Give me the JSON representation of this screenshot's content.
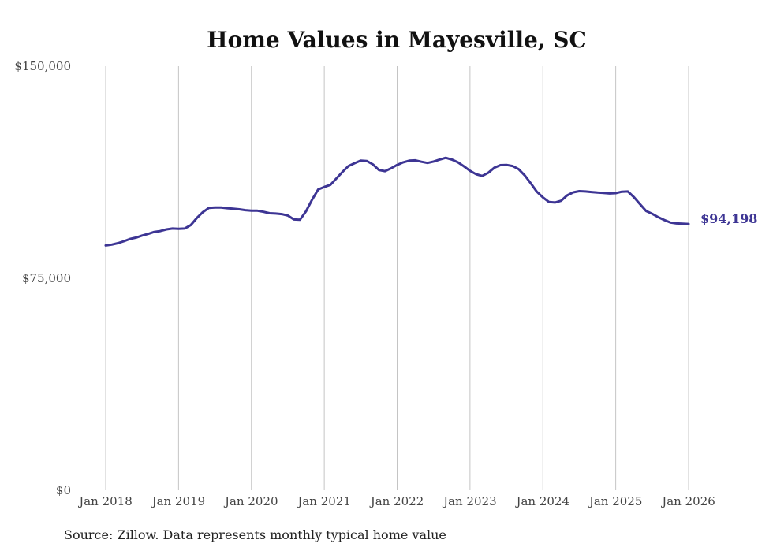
{
  "chart_data": {
    "type": "line",
    "title": "Home Values in Mayesville, SC",
    "xlabel": "",
    "ylabel": "",
    "ylim": [
      0,
      150000
    ],
    "y_ticks": [
      {
        "value": 0,
        "label": "$0"
      },
      {
        "value": 75000,
        "label": "$75,000"
      },
      {
        "value": 150000,
        "label": "$150,000"
      }
    ],
    "x_ticks": [
      {
        "value": "2018-01",
        "label": "Jan 2018"
      },
      {
        "value": "2019-01",
        "label": "Jan 2019"
      },
      {
        "value": "2020-01",
        "label": "Jan 2020"
      },
      {
        "value": "2021-01",
        "label": "Jan 2021"
      },
      {
        "value": "2022-01",
        "label": "Jan 2022"
      },
      {
        "value": "2023-01",
        "label": "Jan 2023"
      },
      {
        "value": "2024-01",
        "label": "Jan 2024"
      },
      {
        "value": "2025-01",
        "label": "Jan 2025"
      },
      {
        "value": "2026-01",
        "label": "Jan 2026"
      }
    ],
    "grid": "vertical",
    "line_color": "#3d3594",
    "end_label": "$94,198",
    "series": [
      {
        "x": [
          "2018-01",
          "2018-02",
          "2018-03",
          "2018-04",
          "2018-05",
          "2018-06",
          "2018-07",
          "2018-08",
          "2018-09",
          "2018-10",
          "2018-11",
          "2018-12",
          "2019-01",
          "2019-02",
          "2019-03",
          "2019-04",
          "2019-05",
          "2019-06",
          "2019-07",
          "2019-08",
          "2019-09",
          "2019-10",
          "2019-11",
          "2019-12",
          "2020-01",
          "2020-02",
          "2020-03",
          "2020-04",
          "2020-05",
          "2020-06",
          "2020-07",
          "2020-08",
          "2020-09",
          "2020-10",
          "2020-11",
          "2020-12",
          "2021-01",
          "2021-02",
          "2021-03",
          "2021-04",
          "2021-05",
          "2021-06",
          "2021-07",
          "2021-08",
          "2021-09",
          "2021-10",
          "2021-11",
          "2021-12",
          "2022-01",
          "2022-02",
          "2022-03",
          "2022-04",
          "2022-05",
          "2022-06",
          "2022-07",
          "2022-08",
          "2022-09",
          "2022-10",
          "2022-11",
          "2022-12",
          "2023-01",
          "2023-02",
          "2023-03",
          "2023-04",
          "2023-05",
          "2023-06",
          "2023-07",
          "2023-08",
          "2023-09",
          "2023-10",
          "2023-11",
          "2023-12",
          "2024-01",
          "2024-02",
          "2024-03",
          "2024-04",
          "2024-05",
          "2024-06",
          "2024-07",
          "2024-08",
          "2024-09",
          "2024-10",
          "2024-11",
          "2024-12",
          "2025-01",
          "2025-02",
          "2025-03",
          "2025-04",
          "2025-05",
          "2025-06",
          "2025-07",
          "2025-08",
          "2025-09",
          "2025-10",
          "2025-11",
          "2025-12",
          "2026-01"
        ],
        "values": [
          86600,
          86900,
          87400,
          88100,
          88900,
          89400,
          90100,
          90700,
          91400,
          91700,
          92300,
          92600,
          92500,
          92600,
          93800,
          96300,
          98400,
          99900,
          100000,
          100000,
          99800,
          99600,
          99400,
          99100,
          98900,
          98900,
          98500,
          98000,
          97900,
          97700,
          97200,
          95800,
          95700,
          98700,
          102800,
          106400,
          107300,
          108000,
          110300,
          112600,
          114700,
          115700,
          116600,
          116500,
          115300,
          113300,
          112900,
          113900,
          115100,
          116000,
          116600,
          116700,
          116200,
          115800,
          116300,
          117000,
          117600,
          117000,
          116000,
          114600,
          113000,
          111800,
          111200,
          112300,
          114100,
          115000,
          115100,
          114700,
          113600,
          111400,
          108600,
          105600,
          103600,
          102000,
          101800,
          102400,
          104300,
          105400,
          105800,
          105700,
          105500,
          105300,
          105200,
          105000,
          105100,
          105600,
          105700,
          103700,
          101200,
          98800,
          97800,
          96600,
          95600,
          94700,
          94400,
          94300,
          94198
        ]
      }
    ],
    "source_note": "Source: Zillow. Data represents monthly typical home value"
  }
}
